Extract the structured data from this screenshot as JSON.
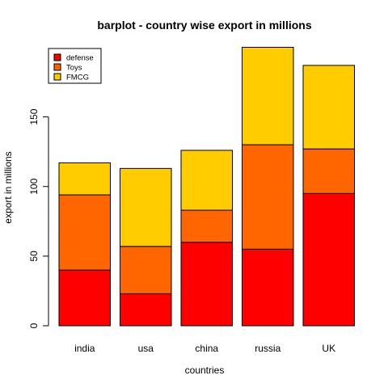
{
  "chart_data": {
    "type": "bar",
    "stacked": true,
    "title": "barplot - country wise export in millions",
    "xlabel": "countries",
    "ylabel": "export in millions",
    "categories": [
      "india",
      "usa",
      "china",
      "russia",
      "UK"
    ],
    "series": [
      {
        "name": "defense",
        "color": "#FF0000",
        "values": [
          40,
          23,
          60,
          55,
          95
        ]
      },
      {
        "name": "Toys",
        "color": "#FF6600",
        "values": [
          54,
          34,
          23,
          75,
          32
        ]
      },
      {
        "name": "FMCG",
        "color": "#FFCC00",
        "values": [
          23,
          56,
          43,
          70,
          60
        ]
      }
    ],
    "yticks": [
      "0",
      "50",
      "100",
      "150"
    ],
    "ylim": [
      0,
      200
    ],
    "grid": false,
    "legend_position": "top-left"
  }
}
